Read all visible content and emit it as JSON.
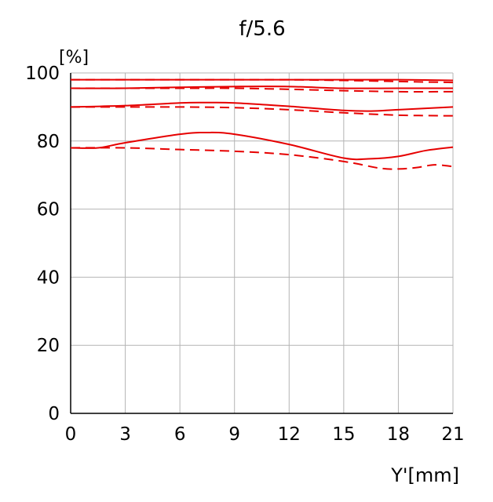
{
  "chart_data": {
    "type": "line",
    "title": "f/5.6",
    "ylabel": "[%]",
    "xlabel": "Y'[mm]",
    "xlim": [
      0,
      21
    ],
    "ylim": [
      0,
      100
    ],
    "xticks": [
      0,
      3,
      6,
      9,
      12,
      15,
      18,
      21
    ],
    "yticks": [
      0,
      20,
      40,
      60,
      80,
      100
    ],
    "grid": true,
    "series_color": "#e60000",
    "grid_color": "#b4b4b4",
    "series": [
      {
        "style": "solid",
        "x": [
          0,
          3,
          6,
          9,
          12,
          15,
          18,
          21
        ],
        "y": [
          98,
          98,
          98,
          98,
          98,
          98,
          98,
          97.8
        ]
      },
      {
        "style": "dashed",
        "x": [
          0,
          3,
          6,
          9,
          12,
          15,
          18,
          21
        ],
        "y": [
          98,
          98,
          98,
          98,
          98,
          97.8,
          97.5,
          97.2
        ]
      },
      {
        "style": "solid",
        "x": [
          0,
          3,
          6,
          9,
          12,
          15,
          18,
          21
        ],
        "y": [
          95.5,
          95.5,
          95.8,
          96,
          96,
          95.5,
          95.5,
          95.5
        ]
      },
      {
        "style": "dashed",
        "x": [
          0,
          3,
          6,
          9,
          12,
          15,
          18,
          21
        ],
        "y": [
          95.5,
          95.5,
          95.5,
          95.5,
          95.2,
          94.8,
          94.5,
          94.5
        ]
      },
      {
        "style": "solid",
        "x": [
          0,
          3,
          6,
          7.5,
          9,
          12,
          15,
          16.5,
          18,
          21
        ],
        "y": [
          90,
          90.4,
          91.2,
          91.3,
          91.2,
          90.2,
          89,
          88.8,
          89.2,
          90
        ]
      },
      {
        "style": "dashed",
        "x": [
          0,
          3,
          6,
          9,
          12,
          15,
          18,
          21
        ],
        "y": [
          90,
          90,
          90,
          89.8,
          89.2,
          88.3,
          87.6,
          87.4
        ]
      },
      {
        "style": "solid",
        "x": [
          0,
          1.5,
          3,
          6,
          7.5,
          9,
          12,
          15,
          16.5,
          18,
          19.5,
          21
        ],
        "y": [
          78,
          78,
          79.5,
          82,
          82.5,
          82,
          79,
          75,
          74.8,
          75.5,
          77.2,
          78.2
        ]
      },
      {
        "style": "dashed",
        "x": [
          0,
          3,
          6,
          9,
          12,
          15,
          17,
          18,
          19,
          20,
          21
        ],
        "y": [
          78,
          78,
          77.5,
          77,
          76,
          74,
          72,
          71.8,
          72.2,
          73,
          72.5
        ]
      }
    ]
  }
}
